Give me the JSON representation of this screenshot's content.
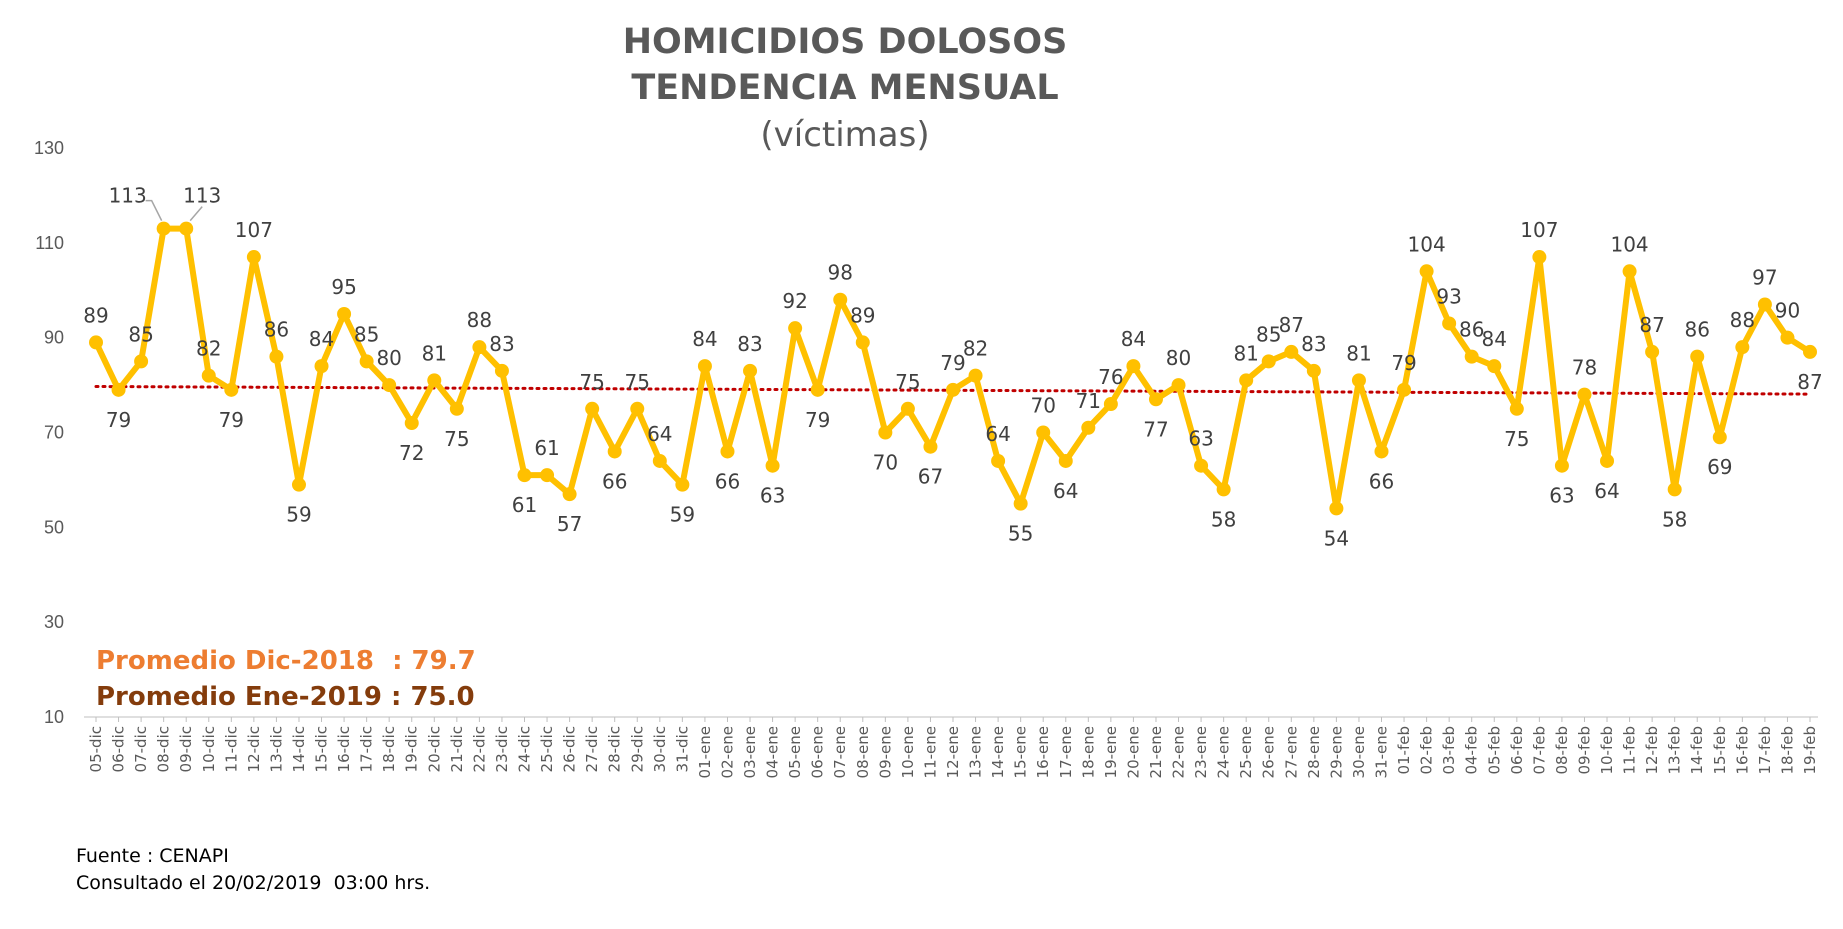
{
  "chart_data": {
    "type": "line",
    "title": "HOMICIDIOS DOLOSOS",
    "subtitle": "TENDENCIA MENSUAL",
    "unit_label": "(víctimas)",
    "categories": [
      "05-dic",
      "06-dic",
      "07-dic",
      "08-dic",
      "09-dic",
      "10-dic",
      "11-dic",
      "12-dic",
      "13-dic",
      "14-dic",
      "15-dic",
      "16-dic",
      "17-dic",
      "18-dic",
      "19-dic",
      "20-dic",
      "21-dic",
      "22-dic",
      "23-dic",
      "24-dic",
      "25-dic",
      "26-dic",
      "27-dic",
      "28-dic",
      "29-dic",
      "30-dic",
      "31-dic",
      "01-ene",
      "02-ene",
      "03-ene",
      "04-ene",
      "05-ene",
      "06-ene",
      "07-ene",
      "08-ene",
      "09-ene",
      "10-ene",
      "11-ene",
      "12-ene",
      "13-ene",
      "14-ene",
      "15-ene",
      "16-ene",
      "17-ene",
      "18-ene",
      "19-ene",
      "20-ene",
      "21-ene",
      "22-ene",
      "23-ene",
      "24-ene",
      "25-ene",
      "26-ene",
      "27-ene",
      "28-ene",
      "29-ene",
      "30-ene",
      "31-ene",
      "01-feb",
      "02-feb",
      "03-feb",
      "04-feb",
      "05-feb",
      "06-feb",
      "07-feb",
      "08-feb",
      "09-feb",
      "10-feb",
      "11-feb",
      "12-feb",
      "13-feb",
      "14-feb",
      "15-feb",
      "16-feb",
      "17-feb",
      "18-feb",
      "19-feb"
    ],
    "series": [
      {
        "values": [
          89,
          79,
          85,
          113,
          113,
          82,
          79,
          107,
          86,
          59,
          84,
          95,
          85,
          80,
          72,
          81,
          75,
          88,
          83,
          61,
          61,
          57,
          75,
          66,
          75,
          64,
          59,
          84,
          66,
          83,
          63,
          92,
          79,
          98,
          89,
          70,
          75,
          67,
          79,
          82,
          64,
          55,
          70,
          64,
          71,
          76,
          84,
          77,
          80,
          63,
          58,
          81,
          85,
          87,
          83,
          54,
          81,
          66,
          79,
          104,
          93,
          86,
          84,
          75,
          107,
          63,
          78,
          64,
          104,
          87,
          58,
          86,
          69,
          88,
          97,
          90,
          87
        ],
        "color": "#FFC000"
      }
    ],
    "trendline": {
      "style": "dotted",
      "color": "#C00000",
      "start": 79.7,
      "end": 78.1
    },
    "ylim": [
      10,
      130
    ],
    "yticks": [
      10,
      30,
      50,
      70,
      90,
      110,
      130
    ],
    "grid": false,
    "legend": "none"
  },
  "annotations": {
    "avg_dic": "Promedio Dic-2018  : 79.7",
    "avg_ene": "Promedio Ene-2019 : 75.0",
    "avg_dic_color": "#ED7D31",
    "avg_ene_color": "#843C0C"
  },
  "footer": {
    "source": "Fuente : CENAPI",
    "consulted": "Consultado el 20/02/2019  03:00 hrs."
  }
}
